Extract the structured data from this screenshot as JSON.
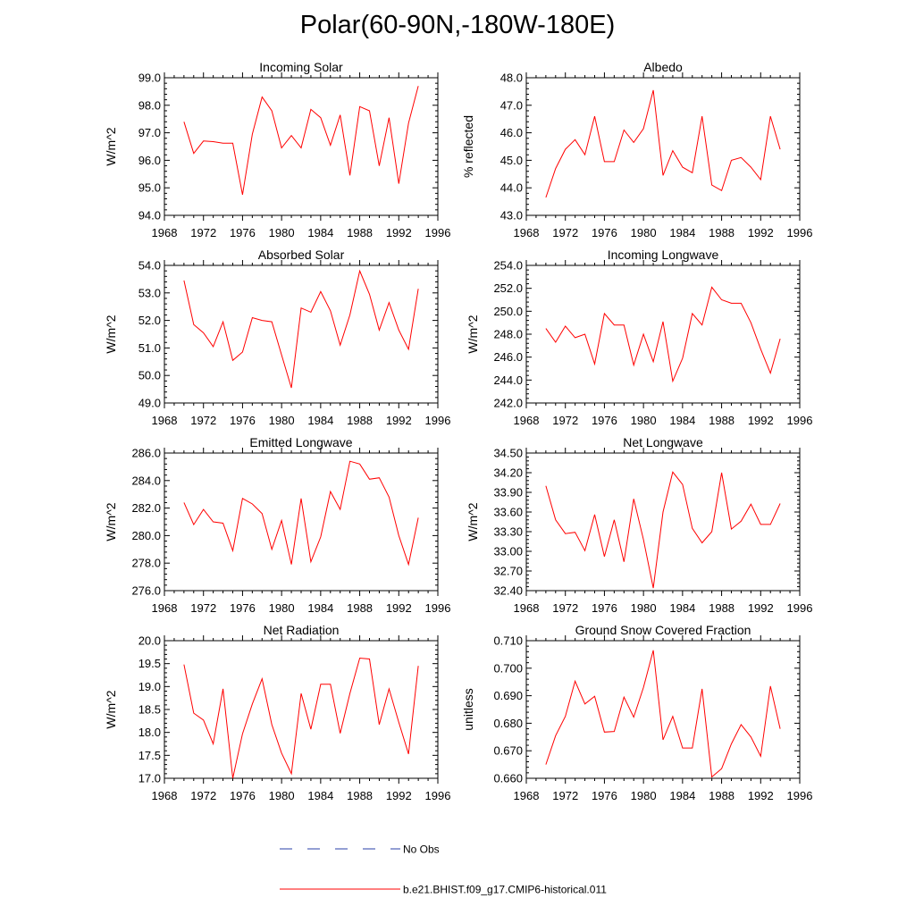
{
  "title": "Polar(60-90N,-180W-180E)",
  "legend": {
    "obs_label": "No Obs",
    "obs_color": "#2a3fa8",
    "model_label": "b.e21.BHIST.f09_g17.CMIP6-historical.011",
    "model_color": "#ff0000"
  },
  "chart_data": [
    {
      "type": "line",
      "title": "Incoming Solar",
      "ylabel": "W/m^2",
      "xlim": [
        1968,
        1996
      ],
      "xticks": [
        "1968",
        "1972",
        "1976",
        "1980",
        "1984",
        "1988",
        "1992",
        "1996"
      ],
      "ylim": [
        94.0,
        99.0
      ],
      "yticks": [
        "94.0",
        "95.0",
        "96.0",
        "97.0",
        "98.0",
        "99.0"
      ],
      "series": [
        {
          "x": [
            1970,
            1971,
            1972,
            1973,
            1974,
            1975,
            1976,
            1977,
            1978,
            1979,
            1980,
            1981,
            1982,
            1983,
            1984,
            1985,
            1986,
            1987,
            1988,
            1989,
            1990,
            1991,
            1992,
            1993,
            1994
          ],
          "values": [
            97.4,
            96.25,
            96.7,
            96.68,
            96.62,
            96.62,
            94.75,
            96.95,
            98.3,
            97.8,
            96.45,
            96.9,
            96.45,
            97.85,
            97.55,
            96.55,
            97.65,
            95.45,
            97.95,
            97.8,
            95.8,
            97.55,
            95.15,
            97.35,
            98.7
          ]
        }
      ]
    },
    {
      "type": "line",
      "title": "Albedo",
      "ylabel": "% reflected",
      "xlim": [
        1968,
        1996
      ],
      "xticks": [
        "1968",
        "1972",
        "1976",
        "1980",
        "1984",
        "1988",
        "1992",
        "1996"
      ],
      "ylim": [
        43.0,
        48.0
      ],
      "yticks": [
        "43.0",
        "44.0",
        "45.0",
        "46.0",
        "47.0",
        "48.0"
      ],
      "series": [
        {
          "x": [
            1970,
            1971,
            1972,
            1973,
            1974,
            1975,
            1976,
            1977,
            1978,
            1979,
            1980,
            1981,
            1982,
            1983,
            1984,
            1985,
            1986,
            1987,
            1988,
            1989,
            1990,
            1991,
            1992,
            1993,
            1994
          ],
          "values": [
            43.65,
            44.7,
            45.4,
            45.75,
            45.2,
            46.6,
            44.95,
            44.95,
            46.1,
            45.65,
            46.15,
            47.55,
            44.45,
            45.35,
            44.75,
            44.55,
            46.6,
            44.1,
            43.9,
            45.0,
            45.1,
            44.75,
            44.3,
            46.6,
            45.4
          ]
        }
      ]
    },
    {
      "type": "line",
      "title": "Absorbed Solar",
      "ylabel": "W/m^2",
      "xlim": [
        1968,
        1996
      ],
      "xticks": [
        "1968",
        "1972",
        "1976",
        "1980",
        "1984",
        "1988",
        "1992",
        "1996"
      ],
      "ylim": [
        49.0,
        54.0
      ],
      "yticks": [
        "49.0",
        "50.0",
        "51.0",
        "52.0",
        "53.0",
        "54.0"
      ],
      "series": [
        {
          "x": [
            1970,
            1971,
            1972,
            1973,
            1974,
            1975,
            1976,
            1977,
            1978,
            1979,
            1980,
            1981,
            1982,
            1983,
            1984,
            1985,
            1986,
            1987,
            1988,
            1989,
            1990,
            1991,
            1992,
            1993,
            1994
          ],
          "values": [
            53.45,
            51.85,
            51.55,
            51.05,
            51.95,
            50.55,
            50.85,
            52.1,
            52.0,
            51.95,
            50.75,
            49.55,
            52.45,
            52.3,
            53.05,
            52.35,
            51.1,
            52.2,
            53.8,
            52.95,
            51.65,
            52.65,
            51.65,
            50.95,
            53.15
          ]
        }
      ]
    },
    {
      "type": "line",
      "title": "Incoming Longwave",
      "ylabel": "W/m^2",
      "xlim": [
        1968,
        1996
      ],
      "xticks": [
        "1968",
        "1972",
        "1976",
        "1980",
        "1984",
        "1988",
        "1992",
        "1996"
      ],
      "ylim": [
        242.0,
        254.0
      ],
      "yticks": [
        "242.0",
        "244.0",
        "246.0",
        "248.0",
        "250.0",
        "252.0",
        "254.0"
      ],
      "series": [
        {
          "x": [
            1970,
            1971,
            1972,
            1973,
            1974,
            1975,
            1976,
            1977,
            1978,
            1979,
            1980,
            1981,
            1982,
            1983,
            1984,
            1985,
            1986,
            1987,
            1988,
            1989,
            1990,
            1991,
            1992,
            1993,
            1994
          ],
          "values": [
            248.5,
            247.3,
            248.7,
            247.7,
            248.0,
            245.4,
            249.8,
            248.8,
            248.8,
            245.3,
            248.0,
            245.6,
            249.1,
            243.9,
            245.9,
            249.8,
            248.8,
            252.1,
            251.0,
            250.7,
            250.7,
            249.0,
            246.7,
            244.6,
            247.6
          ]
        }
      ]
    },
    {
      "type": "line",
      "title": "Emitted Longwave",
      "ylabel": "W/m^2",
      "xlim": [
        1968,
        1996
      ],
      "xticks": [
        "1968",
        "1972",
        "1976",
        "1980",
        "1984",
        "1988",
        "1992",
        "1996"
      ],
      "ylim": [
        276.0,
        286.0
      ],
      "yticks": [
        "276.0",
        "278.0",
        "280.0",
        "282.0",
        "284.0",
        "286.0"
      ],
      "series": [
        {
          "x": [
            1970,
            1971,
            1972,
            1973,
            1974,
            1975,
            1976,
            1977,
            1978,
            1979,
            1980,
            1981,
            1982,
            1983,
            1984,
            1985,
            1986,
            1987,
            1988,
            1989,
            1990,
            1991,
            1992,
            1993,
            1994
          ],
          "values": [
            282.4,
            280.8,
            281.9,
            281.0,
            280.9,
            278.9,
            282.7,
            282.3,
            281.6,
            279.0,
            281.1,
            277.9,
            282.7,
            278.1,
            279.9,
            283.2,
            281.9,
            285.4,
            285.2,
            284.1,
            284.2,
            282.8,
            280.0,
            277.9,
            281.3
          ]
        }
      ]
    },
    {
      "type": "line",
      "title": "Net Longwave",
      "ylabel": "W/m^2",
      "xlim": [
        1968,
        1996
      ],
      "xticks": [
        "1968",
        "1972",
        "1976",
        "1980",
        "1984",
        "1988",
        "1992",
        "1996"
      ],
      "ylim": [
        32.4,
        34.5
      ],
      "yticks": [
        "32.40",
        "32.70",
        "33.00",
        "33.30",
        "33.60",
        "33.90",
        "34.20",
        "34.50"
      ],
      "series": [
        {
          "x": [
            1970,
            1971,
            1972,
            1973,
            1974,
            1975,
            1976,
            1977,
            1978,
            1979,
            1980,
            1981,
            1982,
            1983,
            1984,
            1985,
            1986,
            1987,
            1988,
            1989,
            1990,
            1991,
            1992,
            1993,
            1994
          ],
          "values": [
            34.0,
            33.48,
            33.27,
            33.29,
            33.01,
            33.56,
            32.92,
            33.48,
            32.84,
            33.8,
            33.18,
            32.44,
            33.6,
            34.21,
            34.02,
            33.35,
            33.13,
            33.3,
            34.2,
            33.34,
            33.46,
            33.72,
            33.41,
            33.41,
            33.73
          ]
        }
      ]
    },
    {
      "type": "line",
      "title": "Net Radiation",
      "ylabel": "W/m^2",
      "xlim": [
        1968,
        1996
      ],
      "xticks": [
        "1968",
        "1972",
        "1976",
        "1980",
        "1984",
        "1988",
        "1992",
        "1996"
      ],
      "ylim": [
        17.0,
        20.0
      ],
      "yticks": [
        "17.0",
        "17.5",
        "18.0",
        "18.5",
        "19.0",
        "19.5",
        "20.0"
      ],
      "series": [
        {
          "x": [
            1970,
            1971,
            1972,
            1973,
            1974,
            1975,
            1976,
            1977,
            1978,
            1979,
            1980,
            1981,
            1982,
            1983,
            1984,
            1985,
            1986,
            1987,
            1988,
            1989,
            1990,
            1991,
            1992,
            1993,
            1994
          ],
          "values": [
            19.48,
            18.42,
            18.27,
            17.75,
            18.95,
            17.0,
            17.97,
            18.62,
            19.17,
            18.17,
            17.55,
            17.1,
            18.85,
            18.07,
            19.05,
            19.05,
            17.98,
            18.85,
            19.62,
            19.6,
            18.17,
            18.95,
            18.22,
            17.53,
            19.45
          ]
        }
      ]
    },
    {
      "type": "line",
      "title": "Ground Snow Covered Fraction",
      "ylabel": "unitless",
      "xlim": [
        1968,
        1996
      ],
      "xticks": [
        "1968",
        "1972",
        "1976",
        "1980",
        "1984",
        "1988",
        "1992",
        "1996"
      ],
      "ylim": [
        0.66,
        0.71
      ],
      "yticks": [
        "0.660",
        "0.670",
        "0.680",
        "0.690",
        "0.700",
        "0.710"
      ],
      "series": [
        {
          "x": [
            1970,
            1971,
            1972,
            1973,
            1974,
            1975,
            1976,
            1977,
            1978,
            1979,
            1980,
            1981,
            1982,
            1983,
            1984,
            1985,
            1986,
            1987,
            1988,
            1989,
            1990,
            1991,
            1992,
            1993,
            1994
          ],
          "values": [
            0.665,
            0.6755,
            0.6825,
            0.6953,
            0.687,
            0.6898,
            0.6768,
            0.677,
            0.6895,
            0.6822,
            0.693,
            0.7065,
            0.674,
            0.6825,
            0.671,
            0.671,
            0.6925,
            0.6605,
            0.6635,
            0.6725,
            0.6795,
            0.675,
            0.668,
            0.6935,
            0.678
          ]
        }
      ]
    }
  ]
}
